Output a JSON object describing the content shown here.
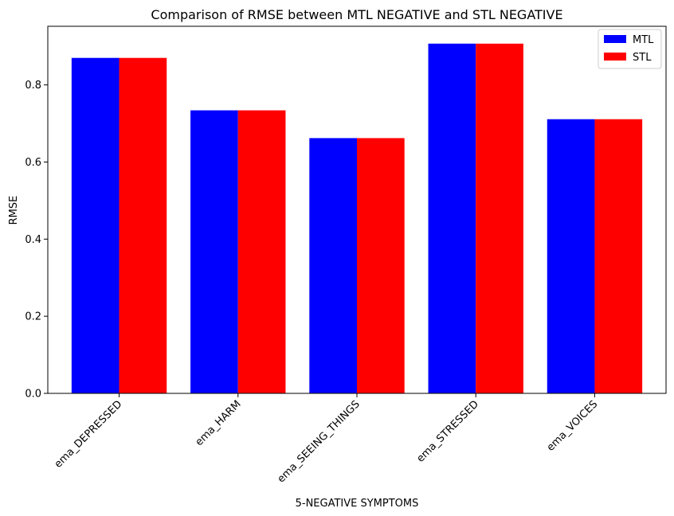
{
  "chart_data": {
    "type": "bar",
    "title": "Comparison of RMSE between MTL NEGATIVE and STL NEGATIVE",
    "xlabel": "5-NEGATIVE SYMPTOMS",
    "ylabel": "RMSE",
    "categories": [
      "ema_DEPRESSED",
      "ema_HARM",
      "ema_SEEING_THINGS",
      "ema_STRESSED",
      "ema_VOICES"
    ],
    "series": [
      {
        "name": "MTL",
        "color": "#0000ff",
        "values": [
          0.87,
          0.734,
          0.662,
          0.907,
          0.711
        ]
      },
      {
        "name": "STL",
        "color": "#ff0000",
        "values": [
          0.87,
          0.734,
          0.662,
          0.907,
          0.711
        ]
      }
    ],
    "ylim": [
      0,
      0.952
    ],
    "yticks": [
      0.0,
      0.2,
      0.4,
      0.6,
      0.8
    ],
    "ytick_labels": [
      "0.0",
      "0.2",
      "0.4",
      "0.6",
      "0.8"
    ],
    "grid": false,
    "legend_position": "top-right"
  }
}
